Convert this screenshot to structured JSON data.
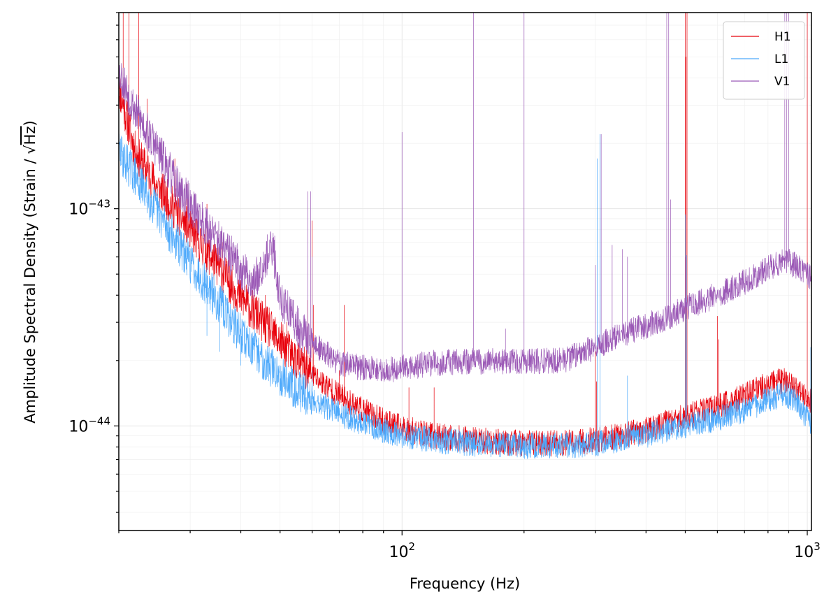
{
  "chart_data": {
    "type": "line",
    "xlabel": "Frequency (Hz)",
    "ylabel": "Amplitude Spectral Density (Strain / √Hz)",
    "ylabel_parts": {
      "before": "Amplitude Spectral Density (Strain / ",
      "sqrt_symbol": "√",
      "sqrt_arg": "Hz",
      "after": ")"
    },
    "x_scale": "log",
    "y_scale": "log",
    "xlim": [
      20,
      1024
    ],
    "ylim": [
      3.3e-45,
      8e-43
    ],
    "grid": true,
    "legend_position": "top-right",
    "x_major_ticks": [
      {
        "value": 100,
        "base": "10",
        "exp": "2"
      },
      {
        "value": 1000,
        "base": "10",
        "exp": "3"
      }
    ],
    "y_major_ticks": [
      {
        "value": 1e-44,
        "base": "10",
        "exp": "−44"
      },
      {
        "value": 1e-43,
        "base": "10",
        "exp": "−43"
      }
    ],
    "series": [
      {
        "name": "H1",
        "color": "#e8000b",
        "baseline": [
          [
            20,
            3.6e-43
          ],
          [
            22,
            1.8e-43
          ],
          [
            25,
            1.25e-43
          ],
          [
            28,
            9.5e-44
          ],
          [
            32,
            6.8e-44
          ],
          [
            36,
            5.1e-44
          ],
          [
            40,
            3.9e-44
          ],
          [
            45,
            3.05e-44
          ],
          [
            50,
            2.45e-44
          ],
          [
            55,
            2e-44
          ],
          [
            60,
            1.72e-44
          ],
          [
            70,
            1.38e-44
          ],
          [
            80,
            1.18e-44
          ],
          [
            90,
            1.05e-44
          ],
          [
            100,
            9.8e-45
          ],
          [
            120,
            9e-45
          ],
          [
            150,
            8.6e-45
          ],
          [
            200,
            8.3e-45
          ],
          [
            250,
            8.3e-45
          ],
          [
            300,
            8.6e-45
          ],
          [
            350,
            9e-45
          ],
          [
            400,
            9.6e-45
          ],
          [
            450,
            1.03e-44
          ],
          [
            500,
            1.1e-44
          ],
          [
            600,
            1.22e-44
          ],
          [
            700,
            1.38e-44
          ],
          [
            800,
            1.55e-44
          ],
          [
            880,
            1.62e-44
          ],
          [
            950,
            1.45e-44
          ],
          [
            1024,
            1.28e-44
          ]
        ],
        "lines": [
          [
            20.5,
            8e-43
          ],
          [
            21.2,
            8e-43
          ],
          [
            22.4,
            8e-43
          ],
          [
            23.5,
            3.2e-43
          ],
          [
            27.5,
            1.7e-43
          ],
          [
            29.5,
            1.3e-43
          ],
          [
            33,
            1.05e-43
          ],
          [
            36,
            7e-44
          ],
          [
            37.5,
            6e-44
          ],
          [
            41,
            4.4e-44
          ],
          [
            46,
            4e-44
          ],
          [
            47,
            3.5e-44
          ],
          [
            52,
            3e-44
          ],
          [
            58.5,
            3.8e-44
          ],
          [
            60,
            8.8e-44
          ],
          [
            60.5,
            3.6e-44
          ],
          [
            70,
            1.8e-44
          ],
          [
            72,
            3.6e-44
          ],
          [
            104,
            1.5e-44
          ],
          [
            120,
            1.5e-44
          ],
          [
            300,
            2.2e-44
          ],
          [
            302,
            1.6e-44
          ],
          [
            500,
            8e-43
          ],
          [
            502,
            5e-43
          ],
          [
            505,
            8e-43
          ],
          [
            600,
            3.2e-44
          ],
          [
            605,
            2.5e-44
          ],
          [
            1000,
            8e-43
          ]
        ]
      },
      {
        "name": "L1",
        "color": "#4da9fb",
        "baseline": [
          [
            20,
            1.85e-43
          ],
          [
            22,
            1.4e-43
          ],
          [
            25,
            9.6e-44
          ],
          [
            28,
            6.8e-44
          ],
          [
            32,
            4.8e-44
          ],
          [
            36,
            3.5e-44
          ],
          [
            40,
            2.65e-44
          ],
          [
            45,
            2.05e-44
          ],
          [
            50,
            1.72e-44
          ],
          [
            55,
            1.48e-44
          ],
          [
            60,
            1.33e-44
          ],
          [
            70,
            1.14e-44
          ],
          [
            80,
            1.03e-44
          ],
          [
            90,
            9.6e-45
          ],
          [
            100,
            9.1e-45
          ],
          [
            120,
            8.6e-45
          ],
          [
            150,
            8.3e-45
          ],
          [
            200,
            8.1e-45
          ],
          [
            250,
            8.1e-45
          ],
          [
            300,
            8.3e-45
          ],
          [
            350,
            8.7e-45
          ],
          [
            400,
            9.1e-45
          ],
          [
            450,
            9.6e-45
          ],
          [
            500,
            1e-44
          ],
          [
            600,
            1.08e-44
          ],
          [
            700,
            1.18e-44
          ],
          [
            800,
            1.32e-44
          ],
          [
            880,
            1.42e-44
          ],
          [
            950,
            1.28e-44
          ],
          [
            1024,
            1e-44
          ]
        ],
        "lines": [
          [
            33,
            2.6e-44
          ],
          [
            35.5,
            2.2e-44
          ],
          [
            40,
            1.9e-44
          ],
          [
            60,
            1.8e-44
          ],
          [
            308,
            2.2e-43
          ],
          [
            303,
            1.7e-43
          ],
          [
            310,
            8.5e-45
          ],
          [
            360,
            1.7e-44
          ],
          [
            500,
            9.4e-44
          ],
          [
            504,
            6.1e-44
          ],
          [
            1020,
            2.3e-44
          ]
        ]
      },
      {
        "name": "V1",
        "color": "#9b59b6",
        "baseline": [
          [
            20,
            4.3e-43
          ],
          [
            22,
            2.8e-43
          ],
          [
            25,
            1.85e-43
          ],
          [
            28,
            1.25e-43
          ],
          [
            32,
            8.9e-44
          ],
          [
            36,
            6.7e-44
          ],
          [
            40,
            5.3e-44
          ],
          [
            43,
            4.5e-44
          ],
          [
            46,
            6e-44
          ],
          [
            48,
            6.5e-44
          ],
          [
            50,
            3.9e-44
          ],
          [
            55,
            2.9e-44
          ],
          [
            60,
            2.4e-44
          ],
          [
            70,
            1.95e-44
          ],
          [
            80,
            1.85e-44
          ],
          [
            90,
            1.8e-44
          ],
          [
            100,
            1.85e-44
          ],
          [
            120,
            1.95e-44
          ],
          [
            150,
            1.98e-44
          ],
          [
            200,
            1.98e-44
          ],
          [
            250,
            2e-44
          ],
          [
            300,
            2.3e-44
          ],
          [
            350,
            2.65e-44
          ],
          [
            400,
            2.9e-44
          ],
          [
            450,
            3.15e-44
          ],
          [
            500,
            3.5e-44
          ],
          [
            600,
            4e-44
          ],
          [
            700,
            4.6e-44
          ],
          [
            800,
            5.3e-44
          ],
          [
            880,
            5.8e-44
          ],
          [
            950,
            5.4e-44
          ],
          [
            1024,
            4.8e-44
          ]
        ],
        "lines": [
          [
            28.5,
            1.35e-43
          ],
          [
            38,
            7.5e-44
          ],
          [
            48.5,
            7.5e-44
          ],
          [
            58.5,
            1.2e-43
          ],
          [
            59.5,
            1.2e-43
          ],
          [
            60,
            6e-44
          ],
          [
            100,
            2.25e-43
          ],
          [
            150,
            8e-43
          ],
          [
            200,
            8e-43
          ],
          [
            180,
            2.8e-44
          ],
          [
            300,
            5.5e-44
          ],
          [
            310,
            2.2e-43
          ],
          [
            330,
            6.8e-44
          ],
          [
            350,
            6.5e-44
          ],
          [
            360,
            6e-44
          ],
          [
            450,
            8e-43
          ],
          [
            455,
            8e-43
          ],
          [
            460,
            1.1e-43
          ],
          [
            500,
            6e-44
          ],
          [
            580,
            4.5e-44
          ],
          [
            880,
            8e-43
          ],
          [
            890,
            8e-43
          ],
          [
            900,
            8e-43
          ]
        ]
      }
    ]
  }
}
